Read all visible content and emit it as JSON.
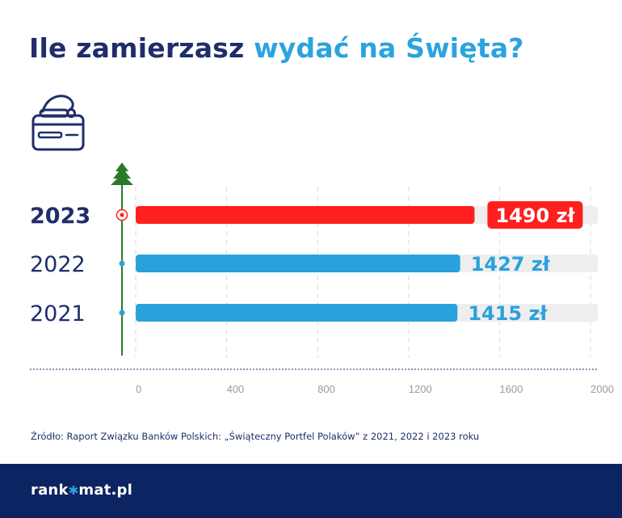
{
  "title": {
    "part1": "Ile zamierzasz",
    "part2": "wydać na Święta?"
  },
  "chart_data": {
    "type": "bar",
    "orientation": "horizontal",
    "categories": [
      "2023",
      "2022",
      "2021"
    ],
    "values": [
      1490,
      1427,
      1415
    ],
    "value_labels": [
      "1490 zł",
      "1427 zł",
      "1415 zł"
    ],
    "highlight_category": "2023",
    "xticks": [
      "0",
      "400",
      "800",
      "1200",
      "1600",
      "2000"
    ],
    "x_unit": "[zł]",
    "xlim": [
      0,
      2000
    ],
    "grid": true,
    "colors": {
      "highlight": "#ff1f1f",
      "bar": "#2aa1dc",
      "track": "#eeeeee",
      "axis": "#2a7a2a",
      "title_dark": "#1f2d6b"
    }
  },
  "icons": {
    "header": "credit-card-santa-hat-icon",
    "axis_top": "christmas-tree-icon"
  },
  "source": "Źródło:  Raport Związku Banków Polskich: „Świąteczny Portfel Polaków” z 2021, 2022 i 2023 roku",
  "footer": {
    "logo_left": "rank",
    "logo_right": "mat.pl"
  }
}
